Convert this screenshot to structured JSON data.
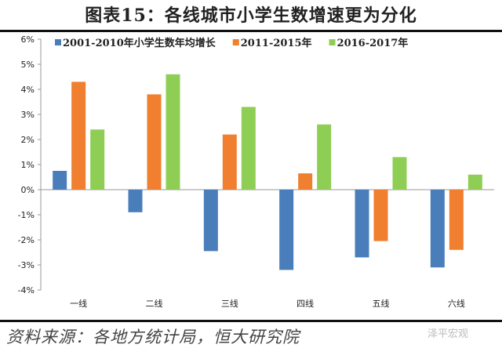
{
  "title": "图表15：各线城市小学生数增速更为分化",
  "source": "资料来源：各地方统计局，恒大研究院",
  "watermark": "泽平宏观",
  "chart_data": {
    "type": "bar",
    "categories": [
      "一线",
      "二线",
      "三线",
      "四线",
      "五线",
      "六线"
    ],
    "ylim": [
      -4,
      6
    ],
    "yticks": [
      "-4%",
      "-3%",
      "-2%",
      "-1%",
      "0%",
      "1%",
      "2%",
      "3%",
      "4%",
      "5%",
      "6%"
    ],
    "legend_position": "top",
    "grid": false,
    "series": [
      {
        "name": "2001-2010年小学生数年均增长",
        "color": "#4a7ebb",
        "values": [
          0.75,
          -0.9,
          -2.45,
          -3.2,
          -2.7,
          -3.1
        ]
      },
      {
        "name": "2011-2015年",
        "color": "#f07f2f",
        "values": [
          4.3,
          3.8,
          2.2,
          0.65,
          -2.05,
          -2.4
        ]
      },
      {
        "name": "2016-2017年",
        "color": "#8fce55",
        "values": [
          2.4,
          4.6,
          3.3,
          2.6,
          1.3,
          0.6
        ]
      }
    ]
  }
}
